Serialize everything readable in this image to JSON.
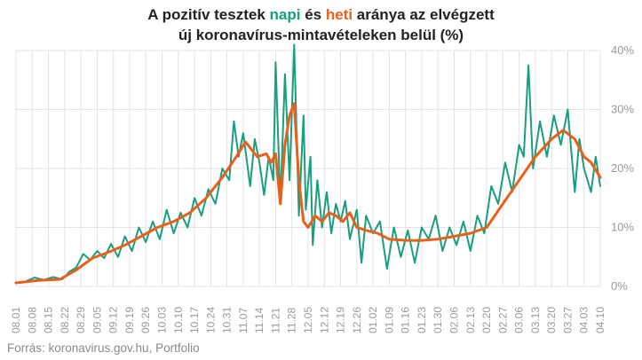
{
  "title": {
    "line1_a": "A pozitív tesztek ",
    "line1_daily": "napi",
    "line1_b": " és ",
    "line1_weekly": "heti",
    "line1_c": " aránya az elvégzett",
    "line2": "új koronavírus-mintavételeken belül (%)"
  },
  "source": "Forrás: koronavirus.gov.hu, Portfolio",
  "colors": {
    "daily": "#1a9e80",
    "weekly": "#e8611a",
    "grid": "#e3e3e3",
    "axis_text": "#9a9a9a"
  },
  "chart_data": {
    "type": "line",
    "y_axis_side": "right",
    "ylim": [
      0,
      40
    ],
    "yticks": [
      0,
      10,
      20,
      30,
      40
    ],
    "ytick_labels": [
      "0%",
      "10%",
      "20%",
      "30%",
      "40%"
    ],
    "xlim": [
      "08.01",
      "04.10"
    ],
    "xtick_labels": [
      "08.01",
      "08.08",
      "08.15",
      "08.22",
      "08.29",
      "09.05",
      "09.12",
      "09.19",
      "09.26",
      "10.03",
      "10.10",
      "10.17",
      "10.24",
      "10.31",
      "11.07",
      "11.14",
      "11.21",
      "11.28",
      "12.05",
      "12.12",
      "12.19",
      "12.26",
      "01.02",
      "01.09",
      "01.16",
      "01.23",
      "01.30",
      "02.06",
      "02.13",
      "02.20",
      "02.27",
      "03.06",
      "03.13",
      "03.20",
      "03.27",
      "04.03",
      "04.10"
    ],
    "grid": true,
    "series": [
      {
        "name": "napi",
        "points": [
          [
            "08.01",
            0.6
          ],
          [
            "08.05",
            0.8
          ],
          [
            "08.09",
            1.5
          ],
          [
            "08.13",
            1.1
          ],
          [
            "08.17",
            1.6
          ],
          [
            "08.21",
            1.2
          ],
          [
            "08.24",
            2.5
          ],
          [
            "08.27",
            3.2
          ],
          [
            "08.30",
            5.5
          ],
          [
            "09.02",
            4.5
          ],
          [
            "09.05",
            6.0
          ],
          [
            "09.08",
            4.8
          ],
          [
            "09.11",
            7.2
          ],
          [
            "09.14",
            5.0
          ],
          [
            "09.17",
            8.5
          ],
          [
            "09.20",
            6.0
          ],
          [
            "09.23",
            10.0
          ],
          [
            "09.26",
            7.5
          ],
          [
            "09.29",
            11.0
          ],
          [
            "10.02",
            8.0
          ],
          [
            "10.05",
            13.0
          ],
          [
            "10.08",
            9.0
          ],
          [
            "10.11",
            12.5
          ],
          [
            "10.14",
            10.0
          ],
          [
            "10.17",
            15.0
          ],
          [
            "10.20",
            12.0
          ],
          [
            "10.23",
            16.5
          ],
          [
            "10.26",
            14.0
          ],
          [
            "10.29",
            20.0
          ],
          [
            "11.01",
            18.0
          ],
          [
            "11.03",
            28.0
          ],
          [
            "11.05",
            22.0
          ],
          [
            "11.07",
            26.0
          ],
          [
            "11.10",
            17.0
          ],
          [
            "11.12",
            25.0
          ],
          [
            "11.14",
            21.0
          ],
          [
            "11.16",
            15.5
          ],
          [
            "11.18",
            22.0
          ],
          [
            "11.20",
            18.0
          ],
          [
            "11.21",
            38.0
          ],
          [
            "11.23",
            14.0
          ],
          [
            "11.25",
            36.0
          ],
          [
            "11.27",
            18.0
          ],
          [
            "11.29",
            41.0
          ],
          [
            "12.01",
            12.0
          ],
          [
            "12.03",
            29.0
          ],
          [
            "12.04",
            13.0
          ],
          [
            "12.06",
            22.0
          ],
          [
            "12.07",
            7.0
          ],
          [
            "12.09",
            18.0
          ],
          [
            "12.11",
            10.0
          ],
          [
            "12.13",
            16.0
          ],
          [
            "12.15",
            9.0
          ],
          [
            "12.17",
            14.0
          ],
          [
            "12.19",
            11.0
          ],
          [
            "12.21",
            14.5
          ],
          [
            "12.23",
            8.0
          ],
          [
            "12.26",
            13.0
          ],
          [
            "12.28",
            4.0
          ],
          [
            "12.30",
            12.0
          ],
          [
            "01.02",
            9.0
          ],
          [
            "01.05",
            11.0
          ],
          [
            "01.08",
            3.0
          ],
          [
            "01.11",
            10.0
          ],
          [
            "01.14",
            5.0
          ],
          [
            "01.17",
            9.5
          ],
          [
            "01.20",
            4.0
          ],
          [
            "01.23",
            10.0
          ],
          [
            "01.26",
            8.0
          ],
          [
            "01.29",
            12.0
          ],
          [
            "02.01",
            6.0
          ],
          [
            "02.04",
            10.0
          ],
          [
            "02.07",
            7.0
          ],
          [
            "02.10",
            11.0
          ],
          [
            "02.13",
            6.0
          ],
          [
            "02.16",
            12.0
          ],
          [
            "02.19",
            9.0
          ],
          [
            "02.22",
            17.0
          ],
          [
            "02.25",
            14.0
          ],
          [
            "02.28",
            21.0
          ],
          [
            "03.03",
            16.0
          ],
          [
            "03.06",
            24.0
          ],
          [
            "03.08",
            22.0
          ],
          [
            "03.10",
            37.5
          ],
          [
            "03.12",
            20.0
          ],
          [
            "03.15",
            28.0
          ],
          [
            "03.18",
            22.0
          ],
          [
            "03.21",
            29.0
          ],
          [
            "03.24",
            24.0
          ],
          [
            "03.27",
            30.0
          ],
          [
            "03.30",
            16.0
          ],
          [
            "04.01",
            25.0
          ],
          [
            "04.03",
            20.0
          ],
          [
            "04.06",
            16.0
          ],
          [
            "04.08",
            22.0
          ],
          [
            "04.10",
            17.0
          ]
        ]
      },
      {
        "name": "heti",
        "points": [
          [
            "08.01",
            0.6
          ],
          [
            "08.10",
            1.0
          ],
          [
            "08.20",
            1.2
          ],
          [
            "08.27",
            2.8
          ],
          [
            "09.03",
            4.8
          ],
          [
            "09.10",
            5.8
          ],
          [
            "09.17",
            7.0
          ],
          [
            "09.24",
            8.5
          ],
          [
            "10.01",
            10.0
          ],
          [
            "10.08",
            11.0
          ],
          [
            "10.15",
            12.5
          ],
          [
            "10.22",
            15.0
          ],
          [
            "10.29",
            18.5
          ],
          [
            "11.04",
            22.0
          ],
          [
            "11.08",
            24.5
          ],
          [
            "11.11",
            23.0
          ],
          [
            "11.13",
            22.0
          ],
          [
            "11.17",
            22.5
          ],
          [
            "11.19",
            21.0
          ],
          [
            "11.21",
            22.5
          ],
          [
            "11.23",
            14.0
          ],
          [
            "11.25",
            24.0
          ],
          [
            "11.27",
            29.0
          ],
          [
            "11.29",
            31.0
          ],
          [
            "12.01",
            18.0
          ],
          [
            "12.03",
            11.0
          ],
          [
            "12.05",
            10.0
          ],
          [
            "12.08",
            12.0
          ],
          [
            "12.11",
            11.0
          ],
          [
            "12.14",
            12.5
          ],
          [
            "12.17",
            12.0
          ],
          [
            "12.20",
            11.0
          ],
          [
            "12.23",
            12.5
          ],
          [
            "12.26",
            10.0
          ],
          [
            "12.30",
            9.5
          ],
          [
            "01.04",
            9.0
          ],
          [
            "01.09",
            8.0
          ],
          [
            "01.16",
            7.8
          ],
          [
            "01.23",
            7.8
          ],
          [
            "01.30",
            8.0
          ],
          [
            "02.06",
            8.5
          ],
          [
            "02.13",
            9.0
          ],
          [
            "02.20",
            10.0
          ],
          [
            "02.27",
            14.0
          ],
          [
            "03.06",
            18.0
          ],
          [
            "03.13",
            22.0
          ],
          [
            "03.20",
            25.0
          ],
          [
            "03.25",
            26.5
          ],
          [
            "03.30",
            25.0
          ],
          [
            "04.03",
            22.0
          ],
          [
            "04.06",
            21.0
          ],
          [
            "04.10",
            18.5
          ]
        ]
      }
    ]
  }
}
